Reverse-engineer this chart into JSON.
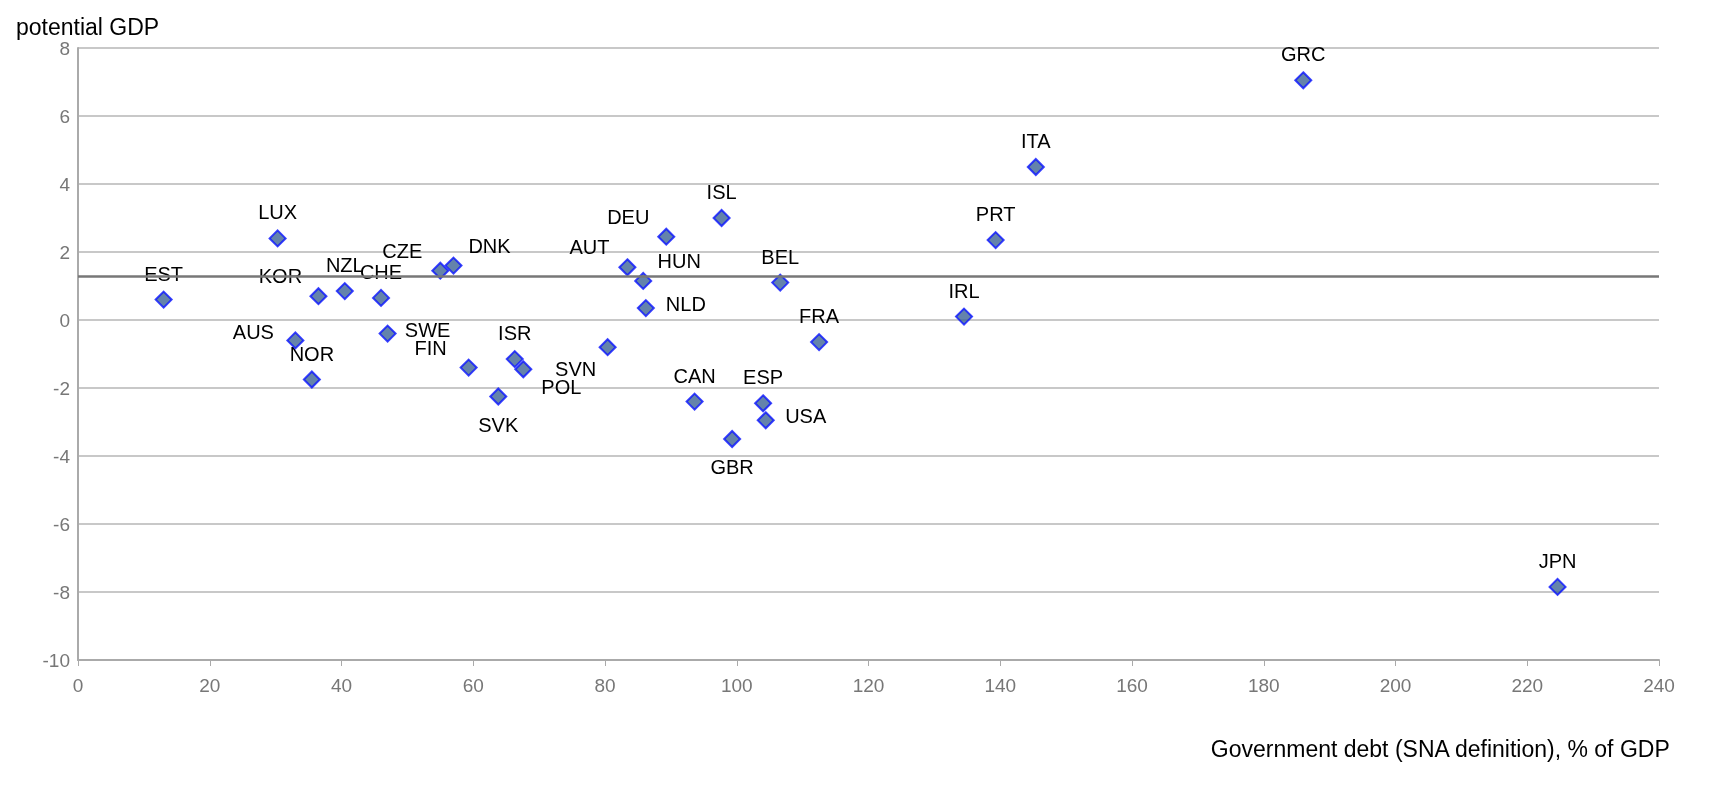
{
  "chart_data": {
    "type": "scatter",
    "ylabel": "potential GDP",
    "xlabel": "Government debt (SNA definition), % of GDP",
    "x": [
      13,
      30.3,
      36.5,
      40.5,
      46,
      33,
      35.5,
      47,
      55,
      57,
      59.3,
      66.3,
      67.6,
      63.8,
      80.4,
      83.4,
      85.8,
      89.3,
      86.2,
      97.7,
      93.6,
      104,
      104.4,
      99.3,
      106.6,
      112.5,
      134.5,
      139.3,
      145.4,
      186,
      224.6
    ],
    "values": [
      0.6,
      2.4,
      0.7,
      0.85,
      0.65,
      -0.6,
      -1.75,
      -0.4,
      1.45,
      1.6,
      -1.4,
      -1.15,
      -1.45,
      -2.25,
      -0.8,
      1.55,
      1.15,
      2.45,
      0.35,
      3.0,
      -2.4,
      -2.45,
      -2.95,
      -3.5,
      1.1,
      -0.65,
      0.1,
      2.35,
      4.5,
      7.05,
      -7.85
    ],
    "color": "#3d6496",
    "marker": "diamond",
    "annotations": [
      {
        "text": "EST",
        "x": 13,
        "y": 0.6
      },
      {
        "text": "LUX",
        "x": 30.3,
        "y": 2.4
      },
      {
        "text": "KOR",
        "x": 36.5,
        "y": 0.7
      },
      {
        "text": "NZL",
        "x": 40.5,
        "y": 0.85
      },
      {
        "text": "CHE",
        "x": 46,
        "y": 0.65
      },
      {
        "text": "AUS",
        "x": 33,
        "y": -0.6
      },
      {
        "text": "NOR",
        "x": 35.5,
        "y": -1.75
      },
      {
        "text": "SWE",
        "x": 47,
        "y": -0.4
      },
      {
        "text": "CZE",
        "x": 55,
        "y": 1.45
      },
      {
        "text": "DNK",
        "x": 57,
        "y": 1.6
      },
      {
        "text": "FIN",
        "x": 59.3,
        "y": -1.4
      },
      {
        "text": "ISR",
        "x": 66.3,
        "y": -1.15
      },
      {
        "text": "POL",
        "x": 67.6,
        "y": -1.45
      },
      {
        "text": "SVK",
        "x": 63.8,
        "y": -2.25
      },
      {
        "text": "SVN",
        "x": 80.4,
        "y": -0.8
      },
      {
        "text": "AUT",
        "x": 83.4,
        "y": 1.55
      },
      {
        "text": "HUN",
        "x": 85.8,
        "y": 1.15
      },
      {
        "text": "DEU",
        "x": 89.3,
        "y": 2.45
      },
      {
        "text": "NLD",
        "x": 86.2,
        "y": 0.35
      },
      {
        "text": "ISL",
        "x": 97.7,
        "y": 3.0
      },
      {
        "text": "CAN",
        "x": 93.6,
        "y": -2.4
      },
      {
        "text": "ESP",
        "x": 104,
        "y": -2.45
      },
      {
        "text": "USA",
        "x": 104.4,
        "y": -2.95
      },
      {
        "text": "GBR",
        "x": 99.3,
        "y": -3.5
      },
      {
        "text": "BEL",
        "x": 106.6,
        "y": 1.1
      },
      {
        "text": "FRA",
        "x": 112.5,
        "y": -0.65
      },
      {
        "text": "IRL",
        "x": 134.5,
        "y": 0.1
      },
      {
        "text": "PRT",
        "x": 139.3,
        "y": 2.35
      },
      {
        "text": "ITA",
        "x": 145.4,
        "y": 4.5
      },
      {
        "text": "GRC",
        "x": 186,
        "y": 7.05
      },
      {
        "text": "JPN",
        "x": 224.6,
        "y": -7.85
      }
    ],
    "ref_lines": [
      {
        "axis": "y",
        "value": 1.3,
        "color": "#777777"
      }
    ],
    "xlim": [
      0,
      240
    ],
    "xticks": [
      0,
      20,
      40,
      60,
      80,
      100,
      120,
      140,
      160,
      180,
      200,
      220,
      240
    ],
    "ylim": [
      -10,
      8
    ],
    "yticks": [
      -10,
      -8,
      -6,
      -4,
      -2,
      0,
      2,
      4,
      6,
      8
    ],
    "grid": "y"
  }
}
